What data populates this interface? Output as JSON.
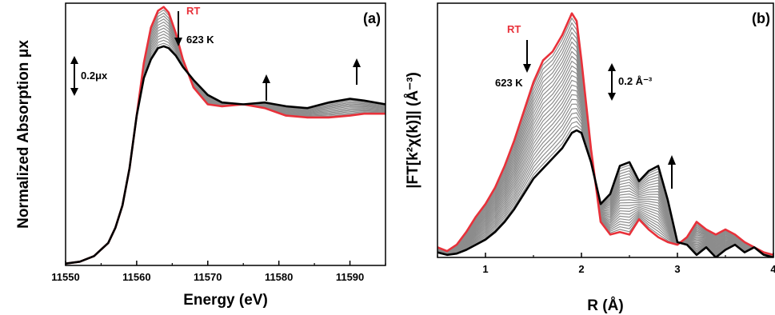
{
  "colors": {
    "rt": "#e8313a",
    "final": "#000000",
    "intermediate": "#8c8c8c",
    "axis": "#000000"
  },
  "chart_data": [
    {
      "type": "line",
      "panel_label": "(a)",
      "xlabel": "Energy (eV)",
      "ylabel": "Normalized Absorption μx",
      "xlim": [
        11550,
        11595
      ],
      "ylim": [
        0,
        1.4
      ],
      "x_ticks": [
        11550,
        11560,
        11570,
        11580,
        11590
      ],
      "x_tick_labels": [
        "11550",
        "11560",
        "11570",
        "11580",
        "11590"
      ],
      "annotations": {
        "start": "RT",
        "end": "623 K",
        "scale": "0.2μx"
      },
      "n_intermediate": 12,
      "series": [
        {
          "role": "start",
          "x": [
            11550,
            11552,
            11554,
            11556,
            11557,
            11558,
            11559,
            11560,
            11561,
            11562,
            11563,
            11563.8,
            11564.5,
            11565.5,
            11566.5,
            11568,
            11570,
            11572,
            11575,
            11578,
            11581,
            11584,
            11587,
            11590,
            11592,
            11595
          ],
          "y": [
            0.01,
            0.02,
            0.05,
            0.12,
            0.2,
            0.32,
            0.52,
            0.8,
            1.08,
            1.27,
            1.36,
            1.38,
            1.35,
            1.24,
            1.1,
            0.95,
            0.86,
            0.85,
            0.86,
            0.84,
            0.8,
            0.79,
            0.79,
            0.8,
            0.81,
            0.81
          ]
        },
        {
          "role": "end",
          "x": [
            11550,
            11552,
            11554,
            11556,
            11557,
            11558,
            11559,
            11560,
            11561,
            11562,
            11563,
            11563.8,
            11564.5,
            11565.5,
            11566.5,
            11568,
            11570,
            11572,
            11575,
            11578,
            11581,
            11584,
            11587,
            11590,
            11592,
            11595
          ],
          "y": [
            0.01,
            0.02,
            0.05,
            0.12,
            0.2,
            0.32,
            0.52,
            0.8,
            1.0,
            1.1,
            1.16,
            1.17,
            1.16,
            1.12,
            1.06,
            0.99,
            0.91,
            0.87,
            0.86,
            0.87,
            0.85,
            0.84,
            0.87,
            0.89,
            0.88,
            0.86
          ]
        }
      ]
    },
    {
      "type": "line",
      "panel_label": "(b)",
      "xlabel": "R (Å)",
      "ylabel": "|FT[k²χ(k)]| (Å⁻³)",
      "xlim": [
        0.5,
        4.0
      ],
      "ylim": [
        0,
        2.0
      ],
      "x_ticks": [
        1,
        2,
        3,
        4
      ],
      "x_tick_labels": [
        "1",
        "2",
        "3",
        "4"
      ],
      "annotations": {
        "start": "RT",
        "end": "623 K",
        "scale": "0.2 Å⁻³"
      },
      "n_intermediate": 24,
      "series": [
        {
          "role": "start",
          "x": [
            0.5,
            0.6,
            0.7,
            0.8,
            0.9,
            1.0,
            1.1,
            1.2,
            1.3,
            1.4,
            1.5,
            1.6,
            1.7,
            1.8,
            1.9,
            1.95,
            2.0,
            2.1,
            2.2,
            2.3,
            2.4,
            2.5,
            2.6,
            2.7,
            2.8,
            2.9,
            3.0,
            3.1,
            3.2,
            3.3,
            3.4,
            3.5,
            3.6,
            3.7,
            3.8,
            3.9,
            4.0
          ],
          "y": [
            0.08,
            0.05,
            0.1,
            0.2,
            0.32,
            0.42,
            0.55,
            0.72,
            0.92,
            1.15,
            1.38,
            1.55,
            1.62,
            1.75,
            1.92,
            1.86,
            1.55,
            0.85,
            0.28,
            0.18,
            0.2,
            0.18,
            0.3,
            0.22,
            0.16,
            0.12,
            0.1,
            0.16,
            0.28,
            0.22,
            0.18,
            0.22,
            0.18,
            0.12,
            0.08,
            0.04,
            0.02
          ]
        },
        {
          "role": "end",
          "x": [
            0.5,
            0.6,
            0.7,
            0.8,
            0.9,
            1.0,
            1.1,
            1.2,
            1.3,
            1.4,
            1.5,
            1.6,
            1.7,
            1.8,
            1.9,
            1.95,
            2.0,
            2.1,
            2.2,
            2.3,
            2.4,
            2.5,
            2.6,
            2.7,
            2.8,
            2.9,
            3.0,
            3.1,
            3.2,
            3.3,
            3.4,
            3.5,
            3.6,
            3.7,
            3.8,
            3.9,
            4.0
          ],
          "y": [
            0.04,
            0.02,
            0.03,
            0.06,
            0.1,
            0.14,
            0.2,
            0.28,
            0.38,
            0.5,
            0.62,
            0.7,
            0.78,
            0.86,
            0.98,
            1.0,
            0.98,
            0.75,
            0.42,
            0.5,
            0.72,
            0.75,
            0.6,
            0.68,
            0.72,
            0.45,
            0.12,
            0.1,
            0.02,
            0.08,
            0.0,
            0.06,
            0.1,
            0.04,
            0.08,
            0.02,
            0.0
          ]
        }
      ]
    }
  ]
}
